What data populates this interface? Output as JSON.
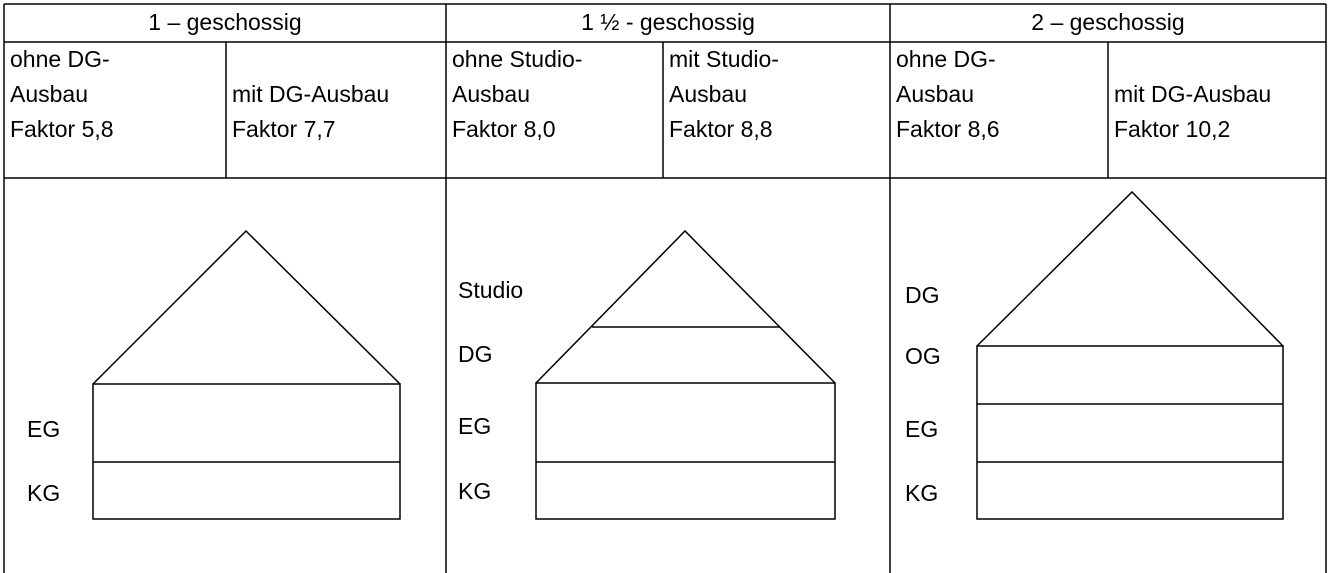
{
  "header": {
    "columns": [
      "1 – geschossig",
      "1 ½ - geschossig",
      "2 – geschossig"
    ]
  },
  "table": {
    "cells": [
      [
        "ohne DG-",
        "Ausbau",
        "Faktor 5,8"
      ],
      [
        "mit DG-Ausbau",
        "Faktor 7,7"
      ],
      [
        "ohne Studio-",
        "Ausbau",
        "Faktor 8,0"
      ],
      [
        "mit Studio-",
        "Ausbau",
        "Faktor 8,8"
      ],
      [
        "ohne DG-",
        "Ausbau",
        "Faktor 8,6"
      ],
      [
        "mit DG-Ausbau",
        "Faktor 10,2"
      ]
    ]
  },
  "diagrams": [
    {
      "labels": [
        "EG",
        "KG"
      ]
    },
    {
      "labels": [
        "Studio",
        "DG",
        "EG",
        "KG"
      ]
    },
    {
      "labels": [
        "DG",
        "OG",
        "EG",
        "KG"
      ]
    }
  ]
}
